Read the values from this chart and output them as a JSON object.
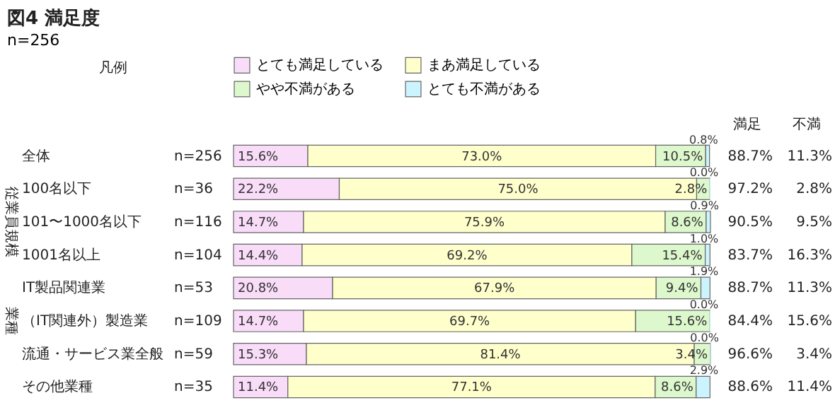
{
  "chart_data": {
    "type": "bar",
    "orientation": "horizontal",
    "stacked": true,
    "title": "図4 満足度",
    "subtitle": "n=256",
    "legend": "top",
    "categories": [
      "全体",
      "100名以下",
      "101〜1000名以下",
      "1001名以上",
      "IT製品関連業",
      "（IT関連外）製造業",
      "流通・サービス業全般",
      "その他業種"
    ],
    "series": [
      {
        "name": "とても満足している",
        "color": "#f8dcf8",
        "values": [
          15.6,
          22.2,
          14.7,
          14.4,
          20.8,
          14.7,
          15.3,
          11.4
        ],
        "value_labels": [
          "15.6%",
          "22.2%",
          "14.7%",
          "14.4%",
          "20.8%",
          "14.7%",
          "15.3%",
          "11.4%"
        ]
      },
      {
        "name": "まあ満足している",
        "color": "#ffffcc",
        "values": [
          73.0,
          75.0,
          75.9,
          69.2,
          67.9,
          69.7,
          81.4,
          77.1
        ],
        "value_labels": [
          "73.0%",
          "75.0%",
          "75.9%",
          "69.2%",
          "67.9%",
          "69.7%",
          "81.4%",
          "77.1%"
        ]
      },
      {
        "name": "やや不満がある",
        "color": "#dcf8cc",
        "values": [
          10.5,
          2.8,
          8.6,
          15.4,
          9.4,
          15.6,
          3.4,
          8.6
        ],
        "value_labels": [
          "10.5%",
          "2.8%",
          "8.6%",
          "15.4%",
          "9.4%",
          "15.6%",
          "3.4%",
          "8.6%"
        ]
      },
      {
        "name": "とても不満がある",
        "color": "#ccf4ff",
        "values": [
          0.8,
          0.0,
          0.9,
          1.0,
          1.9,
          0.0,
          0.0,
          2.9
        ],
        "value_labels": [
          "0.8%",
          "0.0%",
          "0.9%",
          "1.0%",
          "1.9%",
          "0.0%",
          "0.0%",
          "2.9%"
        ]
      }
    ],
    "annotations": [
      "凡例",
      "満足",
      "不満",
      "n=256",
      "88.7%",
      "11.3%",
      "n=36",
      "97.2%",
      "2.8%",
      "n=116",
      "90.5%",
      "9.5%",
      "n=104",
      "83.7%",
      "16.3%",
      "n=53",
      "88.7%",
      "11.3%",
      "n=109",
      "84.4%",
      "15.6%",
      "n=59",
      "96.6%",
      "3.4%",
      "n=35",
      "88.6%",
      "11.4%",
      "従業員規模",
      "業種"
    ]
  }
}
